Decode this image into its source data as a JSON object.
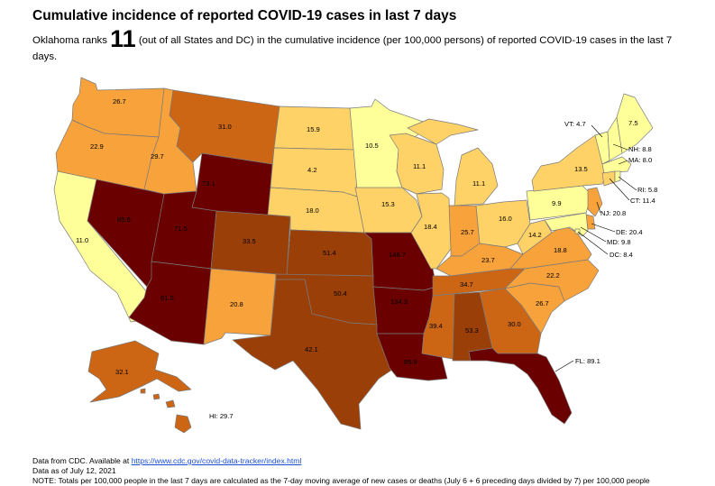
{
  "title": "Cumulative incidence of reported COVID-19 cases in last 7 days",
  "subtitle": {
    "prefix": "Oklahoma ranks",
    "rank": "11",
    "suffix": "(out of all States and DC) in the cumulative incidence (per 100,000 persons) of reported COVID-19 cases in the last 7 days."
  },
  "colors": {
    "lt10": "#ffff99",
    "r10_20": "#fed266",
    "r20_30": "#f8a23b",
    "r30_40": "#cc6615",
    "r40_60": "#9b3f08",
    "gt60": "#6a0000",
    "border": "#7a7a7a"
  },
  "states": {
    "WA": "26.7",
    "OR": "22.9",
    "CA": "11.0",
    "NV": "85.6",
    "ID": "29.7",
    "MT": "31.0",
    "WY": "73.1",
    "UT": "71.5",
    "AZ": "61.5",
    "CO": "33.5",
    "NM": "20.8",
    "ND": "15.9",
    "SD": "4.2",
    "NE": "18.0",
    "KS": "51.4",
    "OK": "50.4",
    "TX": "42.1",
    "MN": "10.5",
    "IA": "15.3",
    "MO": "148.7",
    "AR": "134.3",
    "LA": "85.9",
    "WI": "11.1",
    "IL": "18.4",
    "MI": "11.1",
    "IN": "25.7",
    "OH": "16.0",
    "KY": "23.7",
    "TN": "34.7",
    "MS": "39.4",
    "AL": "53.3",
    "GA": "30.0",
    "FL": "FL: 89.1",
    "SC": "26.7",
    "NC": "22.2",
    "VA": "18.8",
    "WV": "14.2",
    "PA": "9.9",
    "NY": "13.5",
    "ME": "7.5",
    "VT": "VT: 4.7",
    "NH": "NH: 8.8",
    "MA": "MA: 8.0",
    "RI": "RI: 5.8",
    "CT": "CT: 11.4",
    "NJ": "NJ: 20.8",
    "DE": "DE: 20.4",
    "MD": "MD: 9.8",
    "DC": "DC: 8.4",
    "AK": "32.1",
    "HI": "HI: 29.7"
  },
  "footer": {
    "source_prefix": "Data from CDC. Available at",
    "source_link": "https://www.cdc.gov/covid-data-tracker/index.html",
    "asof": "Data as of July 12, 2021",
    "note": "NOTE: Totals per 100,000 people in the last 7 days are calculated as the 7-day moving average of new cases or deaths (July 6 + 6 preceding days divided by 7) per 100,000 people"
  }
}
